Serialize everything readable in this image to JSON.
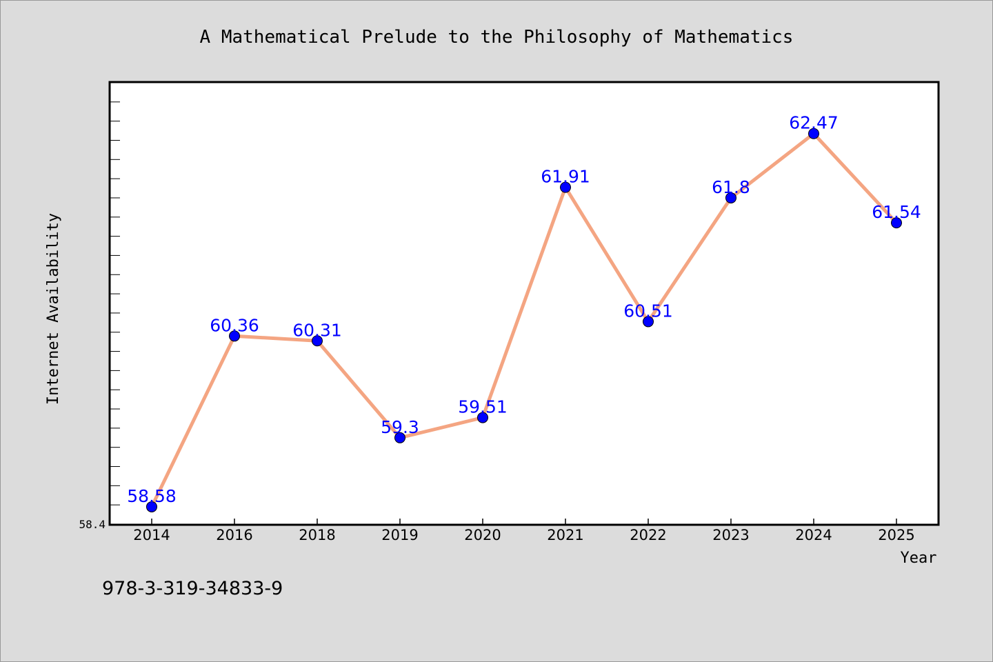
{
  "chart_data": {
    "type": "line",
    "title": "A Mathematical Prelude to the Philosophy of Mathematics",
    "xlabel": "Year",
    "ylabel": "Internet Availability",
    "categories": [
      "2014",
      "2016",
      "2018",
      "2019",
      "2020",
      "2021",
      "2022",
      "2023",
      "2024",
      "2025"
    ],
    "series": [
      {
        "values": [
          58.58,
          60.36,
          60.31,
          59.3,
          59.51,
          61.91,
          60.51,
          61.8,
          62.47,
          61.54
        ],
        "data_labels": [
          "58.58",
          "60.36",
          "60.31",
          "59.3",
          "59.51",
          "61.91",
          "60.51",
          "61.8",
          "62.47",
          "61.54"
        ]
      }
    ],
    "ylim": [
      58.4,
      63.0
    ],
    "y_min_label": "58.4",
    "grid": false,
    "legend": "none",
    "colors": {
      "line": "#f4a582",
      "marker": "#0000ff",
      "label": "#0000ff",
      "plot_background": "#ffffff",
      "figure_background": "#dcdcdc"
    }
  },
  "footer": {
    "isbn": "978-3-319-34833-9"
  }
}
